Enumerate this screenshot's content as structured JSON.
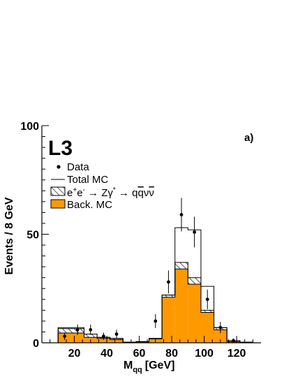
{
  "chart_data": {
    "type": "bar",
    "experiment_label": "L3",
    "panel_label": "a)",
    "xlabel": "M",
    "xlabel_sub": "qq",
    "xlabel_unit": "[GeV]",
    "ylabel": "Events / 8 GeV",
    "xlim": [
      0,
      135
    ],
    "ylim": [
      0,
      100
    ],
    "x_ticks": [
      20,
      40,
      60,
      80,
      100,
      120
    ],
    "y_ticks": [
      0,
      50,
      100
    ],
    "bin_edges": [
      10,
      18,
      26,
      34,
      42,
      50,
      58,
      66,
      74,
      82,
      90,
      98,
      106,
      114,
      122,
      130
    ],
    "series": [
      {
        "name": "Data",
        "kind": "points",
        "x": [
          14,
          22,
          30,
          38,
          46,
          54,
          62,
          70,
          78,
          86,
          94,
          102,
          110,
          118,
          126
        ],
        "values": [
          3,
          6,
          6,
          3,
          4,
          0,
          0,
          10,
          28,
          59,
          51,
          20,
          7,
          1,
          0
        ],
        "errors": [
          1.7,
          2.4,
          2.4,
          1.7,
          2.0,
          0,
          0,
          3.2,
          5.3,
          7.7,
          7.1,
          4.5,
          2.6,
          1.0,
          0
        ]
      },
      {
        "name": "Total MC",
        "kind": "histogram-outline",
        "values": [
          7,
          7,
          4,
          2.5,
          2,
          0.3,
          0.6,
          2,
          22,
          53,
          52,
          26,
          7,
          1,
          0.3
        ]
      },
      {
        "name": "e+e- → Zγ* → qqνν",
        "kind": "histogram-hatched",
        "values": [
          6.5,
          6.5,
          4,
          2.5,
          2,
          0.3,
          0.5,
          2,
          22,
          37,
          30,
          15,
          7,
          1,
          0.3
        ]
      },
      {
        "name": "Back. MC",
        "kind": "histogram-filled",
        "values": [
          4.5,
          4.5,
          2.5,
          2,
          1.5,
          0.3,
          0.4,
          1.8,
          21,
          34,
          27,
          14,
          6,
          0.5,
          0.3
        ]
      }
    ],
    "legend": {
      "data": "Data",
      "total_mc": "Total MC",
      "signal_parts": [
        "e",
        "+",
        "e",
        "-",
        " → Zγ",
        "*",
        " → q",
        "q",
        "ν",
        "ν"
      ],
      "background": "Back. MC"
    },
    "legend_position": "top-left",
    "grid": false
  },
  "colors": {
    "background_fill": "#ff9900",
    "axis": "#000000",
    "outline": "#000000",
    "hatch": "#000000"
  }
}
